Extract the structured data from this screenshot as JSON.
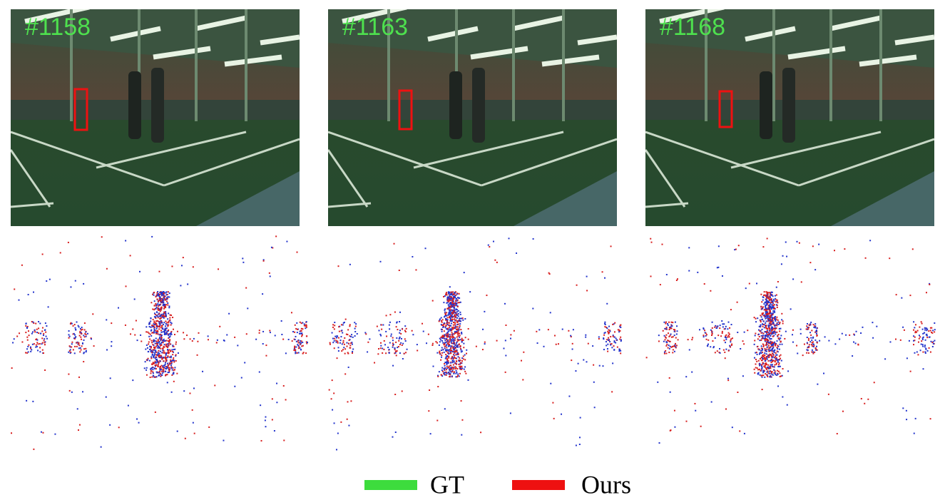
{
  "panels": [
    {
      "frame": "#1158"
    },
    {
      "frame": "#1163"
    },
    {
      "frame": "#1168"
    }
  ],
  "legend": [
    {
      "label": "GT",
      "color": "#3ddc3d"
    },
    {
      "label": "Ours",
      "color": "#ee1111"
    }
  ]
}
